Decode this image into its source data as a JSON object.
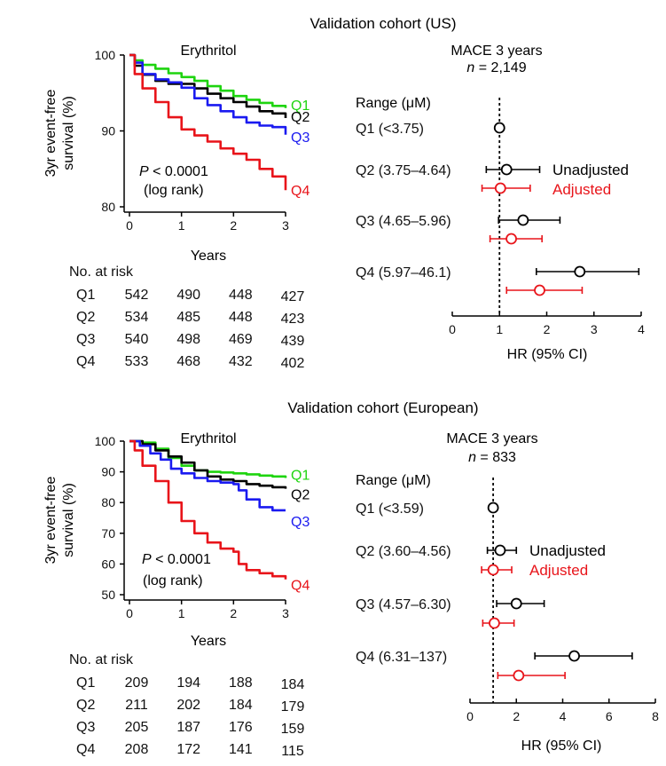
{
  "colors": {
    "Q1": "#1ed40f",
    "Q2": "#000000",
    "Q3": "#1a1af0",
    "Q4": "#e8141a",
    "unadjusted": "#000000",
    "adjusted": "#e8141a"
  },
  "chart_data": [
    {
      "type": "line",
      "panel_title": "Validation cohort (US)",
      "title": "Erythritol",
      "xlabel": "Years",
      "ylabel_lines": [
        "3yr event-free",
        "survival (%)"
      ],
      "xlim": [
        0,
        3
      ],
      "ylim": [
        80,
        100
      ],
      "xticks": [
        "0",
        "1",
        "2",
        "3"
      ],
      "yticks": [
        "80",
        "90",
        "100"
      ],
      "p_value": "P < 0.0001",
      "test": "(log rank)",
      "series": [
        {
          "name": "Q1",
          "x": [
            0,
            0.1,
            0.25,
            0.5,
            0.75,
            1,
            1.25,
            1.5,
            1.75,
            2,
            2.25,
            2.5,
            2.75,
            3
          ],
          "y": [
            100,
            99.3,
            98.7,
            98.2,
            97.6,
            97.1,
            96.6,
            95.9,
            95.3,
            94.6,
            94.1,
            93.7,
            93.3,
            93.0
          ]
        },
        {
          "name": "Q2",
          "x": [
            0,
            0.1,
            0.25,
            0.5,
            0.75,
            1,
            1.25,
            1.5,
            1.75,
            2,
            2.25,
            2.5,
            2.75,
            3
          ],
          "y": [
            100,
            98.6,
            97.4,
            96.6,
            96.2,
            96.2,
            95.6,
            94.9,
            94.3,
            93.8,
            93.2,
            92.6,
            92.3,
            91.7
          ]
        },
        {
          "name": "Q3",
          "x": [
            0,
            0.1,
            0.25,
            0.5,
            0.75,
            1,
            1.25,
            1.5,
            1.75,
            2,
            2.25,
            2.5,
            2.75,
            3
          ],
          "y": [
            100,
            99.0,
            97.5,
            96.8,
            96.4,
            95.7,
            94.3,
            93.4,
            92.6,
            91.8,
            91.1,
            90.7,
            90.5,
            89.5
          ]
        },
        {
          "name": "Q4",
          "x": [
            0,
            0.1,
            0.25,
            0.5,
            0.75,
            1,
            1.25,
            1.5,
            1.75,
            2,
            2.25,
            2.5,
            2.75,
            3
          ],
          "y": [
            100,
            97.5,
            95.6,
            93.8,
            91.8,
            90.2,
            89.4,
            88.6,
            87.7,
            87.0,
            86.2,
            85.0,
            84.0,
            82.2
          ]
        }
      ],
      "risk_table": {
        "title": "No. at risk",
        "rows": [
          {
            "label": "Q1",
            "values": [
              "542",
              "490",
              "448",
              "427"
            ]
          },
          {
            "label": "Q2",
            "values": [
              "534",
              "485",
              "448",
              "423"
            ]
          },
          {
            "label": "Q3",
            "values": [
              "540",
              "498",
              "469",
              "439"
            ]
          },
          {
            "label": "Q4",
            "values": [
              "533",
              "468",
              "432",
              "402"
            ]
          }
        ]
      }
    },
    {
      "type": "forest",
      "title": "MACE 3 years",
      "n_label": "n",
      "n_value": " = 2,149",
      "range_header": "Range (μM)",
      "xlabel": "HR (95% CI)",
      "xlim": [
        0,
        4
      ],
      "xticks": [
        "0",
        "1",
        "2",
        "3",
        "4"
      ],
      "reference": 1,
      "legend": {
        "unadjusted": "Unadjusted",
        "adjusted": "Adjusted"
      },
      "groups": [
        {
          "label": "Q1 (<3.75)",
          "unadjusted": {
            "hr": 1.0,
            "lo": 1.0,
            "hi": 1.0
          }
        },
        {
          "label": "Q2 (3.75–4.64)",
          "unadjusted": {
            "hr": 1.15,
            "lo": 0.72,
            "hi": 1.85
          },
          "adjusted": {
            "hr": 1.02,
            "lo": 0.63,
            "hi": 1.65
          }
        },
        {
          "label": "Q3 (4.65–5.96)",
          "unadjusted": {
            "hr": 1.5,
            "lo": 0.98,
            "hi": 2.28
          },
          "adjusted": {
            "hr": 1.25,
            "lo": 0.8,
            "hi": 1.9
          }
        },
        {
          "label": "Q4 (5.97–46.1)",
          "unadjusted": {
            "hr": 2.7,
            "lo": 1.78,
            "hi": 3.95
          },
          "adjusted": {
            "hr": 1.85,
            "lo": 1.15,
            "hi": 2.75
          }
        }
      ]
    },
    {
      "type": "line",
      "panel_title": "Validation cohort (European)",
      "title": "Erythritol",
      "xlabel": "Years",
      "ylabel_lines": [
        "3yr event-free",
        "survival (%)"
      ],
      "xlim": [
        0,
        3
      ],
      "ylim": [
        50,
        100
      ],
      "xticks": [
        "0",
        "1",
        "2",
        "3"
      ],
      "yticks": [
        "50",
        "60",
        "70",
        "80",
        "90",
        "100"
      ],
      "p_value": "P < 0.0001",
      "test": "(log rank)",
      "series": [
        {
          "name": "Q1",
          "x": [
            0,
            0.25,
            0.5,
            0.75,
            1,
            1.25,
            1.5,
            1.75,
            2,
            2.25,
            2.5,
            2.75,
            3
          ],
          "y": [
            100,
            99.5,
            97.5,
            94.5,
            92,
            90.5,
            90,
            89.8,
            89.5,
            89.2,
            88.8,
            88.5,
            88
          ]
        },
        {
          "name": "Q2",
          "x": [
            0,
            0.25,
            0.5,
            0.75,
            1,
            1.25,
            1.5,
            1.75,
            2,
            2.25,
            2.5,
            2.75,
            3
          ],
          "y": [
            100,
            99,
            97,
            95,
            93,
            90.5,
            88.5,
            87.5,
            87,
            86,
            85.5,
            85,
            84.5
          ]
        },
        {
          "name": "Q3",
          "x": [
            0,
            0.2,
            0.4,
            0.6,
            0.8,
            1,
            1.25,
            1.5,
            1.75,
            2,
            2.1,
            2.25,
            2.5,
            2.75,
            3
          ],
          "y": [
            100,
            98.5,
            96,
            94,
            91,
            89.5,
            88,
            87,
            86.5,
            86,
            84,
            81,
            78.5,
            77.5,
            77.5
          ]
        },
        {
          "name": "Q4",
          "x": [
            0,
            0.1,
            0.25,
            0.5,
            0.75,
            1,
            1.25,
            1.5,
            1.75,
            2,
            2.1,
            2.25,
            2.5,
            2.75,
            3
          ],
          "y": [
            100,
            97,
            92,
            87,
            80,
            74,
            70,
            67,
            65,
            64,
            60,
            58,
            57,
            56,
            55
          ]
        }
      ],
      "risk_table": {
        "title": "No. at risk",
        "rows": [
          {
            "label": "Q1",
            "values": [
              "209",
              "194",
              "188",
              "184"
            ]
          },
          {
            "label": "Q2",
            "values": [
              "211",
              "202",
              "184",
              "179"
            ]
          },
          {
            "label": "Q3",
            "values": [
              "205",
              "187",
              "176",
              "159"
            ]
          },
          {
            "label": "Q4",
            "values": [
              "208",
              "172",
              "141",
              "115"
            ]
          }
        ]
      }
    },
    {
      "type": "forest",
      "title": "MACE 3 years",
      "n_label": "n",
      "n_value": " = 833",
      "range_header": "Range (μM)",
      "xlabel": "HR (95% CI)",
      "xlim": [
        0,
        8
      ],
      "xticks": [
        "0",
        "2",
        "4",
        "6",
        "8"
      ],
      "reference": 1,
      "legend": {
        "unadjusted": "Unadjusted",
        "adjusted": "Adjusted"
      },
      "groups": [
        {
          "label": "Q1 (<3.59)",
          "unadjusted": {
            "hr": 1.0,
            "lo": 1.0,
            "hi": 1.0
          }
        },
        {
          "label": "Q2 (3.60–4.56)",
          "unadjusted": {
            "hr": 1.3,
            "lo": 0.75,
            "hi": 2.0
          },
          "adjusted": {
            "hr": 1.0,
            "lo": 0.5,
            "hi": 1.8
          }
        },
        {
          "label": "Q3 (4.57–6.30)",
          "unadjusted": {
            "hr": 2.0,
            "lo": 1.15,
            "hi": 3.2
          },
          "adjusted": {
            "hr": 1.05,
            "lo": 0.55,
            "hi": 1.9
          }
        },
        {
          "label": "Q4 (6.31–137)",
          "unadjusted": {
            "hr": 4.5,
            "lo": 2.8,
            "hi": 7.0
          },
          "adjusted": {
            "hr": 2.1,
            "lo": 1.2,
            "hi": 4.1
          }
        }
      ]
    }
  ]
}
